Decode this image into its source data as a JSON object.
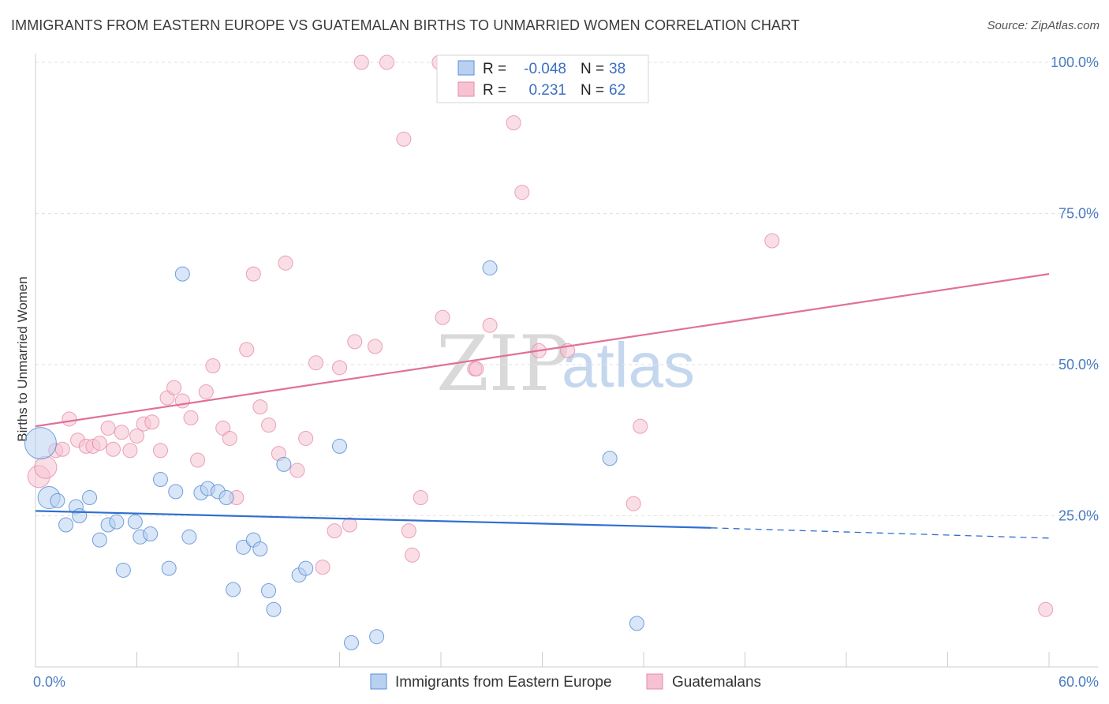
{
  "header": {
    "title": "IMMIGRANTS FROM EASTERN EUROPE VS GUATEMALAN BIRTHS TO UNMARRIED WOMEN CORRELATION CHART",
    "source": "Source: ZipAtlas.com"
  },
  "watermark": {
    "zip": "ZIP",
    "atlas": "atlas"
  },
  "colors": {
    "blue": "#5b8fd6",
    "blue_fill": "#b8d1f0",
    "blue_line": "#2f6fcf",
    "pink": "#e68aa8",
    "pink_fill": "#f6c2d2",
    "pink_line": "#e0709a",
    "tick_text": "#4a7cc0",
    "grid": "#e2e2e2"
  },
  "legend": {
    "rows": [
      {
        "r_label": "R =",
        "r_value": "-0.048",
        "n_label": "N =",
        "n_value": "38"
      },
      {
        "r_label": "R =",
        "r_value": "0.231",
        "n_label": "N =",
        "n_value": "62"
      }
    ]
  },
  "bottom_legend": {
    "blue_label": "Immigrants from Eastern Europe",
    "pink_label": "Guatemalans"
  },
  "chart_data": {
    "type": "scatter",
    "title": "IMMIGRANTS FROM EASTERN EUROPE VS GUATEMALAN BIRTHS TO UNMARRIED WOMEN CORRELATION CHART",
    "xlabel": "",
    "ylabel": "Births to Unmarried Women",
    "xlim": [
      0,
      60
    ],
    "ylim": [
      0,
      105
    ],
    "x_tick_labels": [
      "0.0%",
      "60.0%"
    ],
    "y_ticks": [
      25,
      50,
      75,
      100
    ],
    "y_tick_labels": [
      "25.0%",
      "50.0%",
      "75.0%",
      "100.0%"
    ],
    "grid": true,
    "series": [
      {
        "name": "Immigrants from Eastern Europe",
        "color": "#5b8fd6",
        "points": [
          [
            0.3,
            37,
            3
          ],
          [
            0.8,
            28,
            2
          ],
          [
            1.3,
            27.5,
            1
          ],
          [
            1.8,
            23.5,
            1
          ],
          [
            2.4,
            26.5,
            1
          ],
          [
            2.6,
            25,
            1
          ],
          [
            3.2,
            28,
            1
          ],
          [
            3.8,
            21,
            1
          ],
          [
            4.3,
            23.5,
            1
          ],
          [
            4.8,
            24,
            1
          ],
          [
            5.2,
            16,
            1
          ],
          [
            5.9,
            24,
            1
          ],
          [
            6.2,
            21.5,
            1
          ],
          [
            6.8,
            22,
            1
          ],
          [
            7.4,
            31,
            1
          ],
          [
            7.9,
            16.3,
            1
          ],
          [
            8.3,
            29,
            1
          ],
          [
            8.7,
            65,
            1
          ],
          [
            9.1,
            21.5,
            1
          ],
          [
            9.8,
            28.8,
            1
          ],
          [
            10.2,
            29.5,
            1
          ],
          [
            10.8,
            29,
            1
          ],
          [
            11.3,
            28,
            1
          ],
          [
            11.7,
            12.8,
            1
          ],
          [
            12.3,
            19.8,
            1
          ],
          [
            12.9,
            21,
            1
          ],
          [
            13.3,
            19.5,
            1
          ],
          [
            13.8,
            12.6,
            1
          ],
          [
            14.1,
            9.5,
            1
          ],
          [
            14.7,
            33.5,
            1
          ],
          [
            15.6,
            15.2,
            1
          ],
          [
            16.0,
            16.3,
            1
          ],
          [
            18.0,
            36.5,
            1
          ],
          [
            18.7,
            4,
            1
          ],
          [
            20.2,
            5,
            1
          ],
          [
            26.9,
            66,
            1
          ],
          [
            34.0,
            34.5,
            1
          ],
          [
            35.6,
            7.2,
            1
          ]
        ]
      },
      {
        "name": "Guatemalans",
        "color": "#e68aa8",
        "points": [
          [
            0.2,
            31.5,
            2
          ],
          [
            0.6,
            33,
            2
          ],
          [
            1.2,
            35.8,
            1
          ],
          [
            1.6,
            36,
            1
          ],
          [
            2.0,
            41,
            1
          ],
          [
            2.5,
            37.5,
            1
          ],
          [
            3.0,
            36.5,
            1
          ],
          [
            3.4,
            36.5,
            1
          ],
          [
            3.8,
            37,
            1
          ],
          [
            4.3,
            39.5,
            1
          ],
          [
            4.6,
            36,
            1
          ],
          [
            5.1,
            38.8,
            1
          ],
          [
            5.6,
            35.8,
            1
          ],
          [
            6.0,
            38.2,
            1
          ],
          [
            6.4,
            40.2,
            1
          ],
          [
            6.9,
            40.5,
            1
          ],
          [
            7.4,
            35.8,
            1
          ],
          [
            7.8,
            44.5,
            1
          ],
          [
            8.2,
            46.2,
            1
          ],
          [
            8.7,
            44,
            1
          ],
          [
            9.2,
            41.2,
            1
          ],
          [
            9.6,
            34.2,
            1
          ],
          [
            10.1,
            45.5,
            1
          ],
          [
            10.5,
            49.8,
            1
          ],
          [
            11.1,
            39.5,
            1
          ],
          [
            11.5,
            37.8,
            1
          ],
          [
            11.9,
            28,
            1
          ],
          [
            12.5,
            52.5,
            1
          ],
          [
            12.9,
            65,
            1
          ],
          [
            13.3,
            43,
            1
          ],
          [
            13.8,
            40,
            1
          ],
          [
            14.4,
            35.3,
            1
          ],
          [
            14.8,
            66.8,
            1
          ],
          [
            15.5,
            32.5,
            1
          ],
          [
            16.0,
            37.8,
            1
          ],
          [
            16.6,
            50.3,
            1
          ],
          [
            17.0,
            16.5,
            1
          ],
          [
            17.7,
            22.5,
            1
          ],
          [
            18.0,
            49.5,
            1
          ],
          [
            18.6,
            23.5,
            1
          ],
          [
            18.9,
            53.8,
            1
          ],
          [
            19.3,
            100,
            1
          ],
          [
            20.1,
            53,
            1
          ],
          [
            20.8,
            100,
            1
          ],
          [
            21.8,
            87.3,
            1
          ],
          [
            22.1,
            22.5,
            1
          ],
          [
            22.3,
            18.5,
            1
          ],
          [
            22.8,
            28,
            1
          ],
          [
            23.9,
            100,
            1
          ],
          [
            24.1,
            57.8,
            1
          ],
          [
            26.0,
            49.3,
            1
          ],
          [
            26.1,
            49.3,
            1
          ],
          [
            26.9,
            56.5,
            1
          ],
          [
            28.3,
            90,
            1
          ],
          [
            28.8,
            78.5,
            1
          ],
          [
            29.8,
            52.3,
            1
          ],
          [
            31.5,
            52.3,
            1
          ],
          [
            33.8,
            100,
            1
          ],
          [
            35.4,
            27,
            1
          ],
          [
            35.8,
            39.8,
            1
          ],
          [
            43.6,
            70.5,
            1
          ],
          [
            59.8,
            9.5,
            1
          ]
        ]
      }
    ],
    "trend_lines": [
      {
        "name": "Immigrants from Eastern Europe",
        "solid": [
          [
            0,
            25.8
          ],
          [
            40,
            23
          ]
        ],
        "dashed": [
          [
            40,
            23
          ],
          [
            60,
            21.3
          ]
        ]
      },
      {
        "name": "Guatemalans",
        "solid": [
          [
            0,
            39.8
          ],
          [
            60,
            65
          ]
        ]
      }
    ]
  }
}
